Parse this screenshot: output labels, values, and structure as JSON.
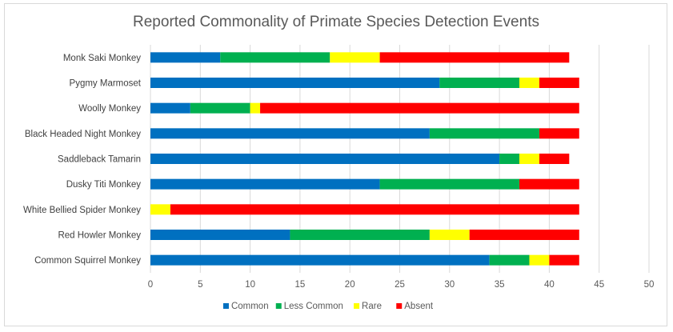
{
  "chart_data": {
    "type": "bar",
    "orientation": "horizontal",
    "stacked": true,
    "title": "Reported Commonality of Primate Species Detection Events",
    "xlabel": "",
    "ylabel": "",
    "xlim": [
      0,
      50
    ],
    "xticks": [
      0,
      5,
      10,
      15,
      20,
      25,
      30,
      35,
      40,
      45,
      50
    ],
    "grid": "vertical",
    "legend_position": "bottom",
    "categories": [
      "Monk Saki Monkey",
      "Pygmy Marmoset",
      "Woolly Monkey",
      "Black Headed Night Monkey",
      "Saddleback Tamarin",
      "Dusky Titi Monkey",
      "White Bellied Spider Monkey",
      "Red Howler Monkey",
      "Common Squirrel Monkey"
    ],
    "series": [
      {
        "name": "Common",
        "color": "#0070c0",
        "values": [
          7,
          29,
          4,
          28,
          35,
          23,
          0,
          14,
          34
        ]
      },
      {
        "name": "Less Common",
        "color": "#00b050",
        "values": [
          11,
          8,
          6,
          11,
          2,
          14,
          0,
          14,
          4
        ]
      },
      {
        "name": "Rare",
        "color": "#ffff00",
        "values": [
          5,
          2,
          1,
          0,
          2,
          0,
          2,
          4,
          2
        ]
      },
      {
        "name": "Absent",
        "color": "#ff0000",
        "values": [
          19,
          4,
          32,
          4,
          3,
          6,
          41,
          11,
          3
        ]
      }
    ]
  }
}
